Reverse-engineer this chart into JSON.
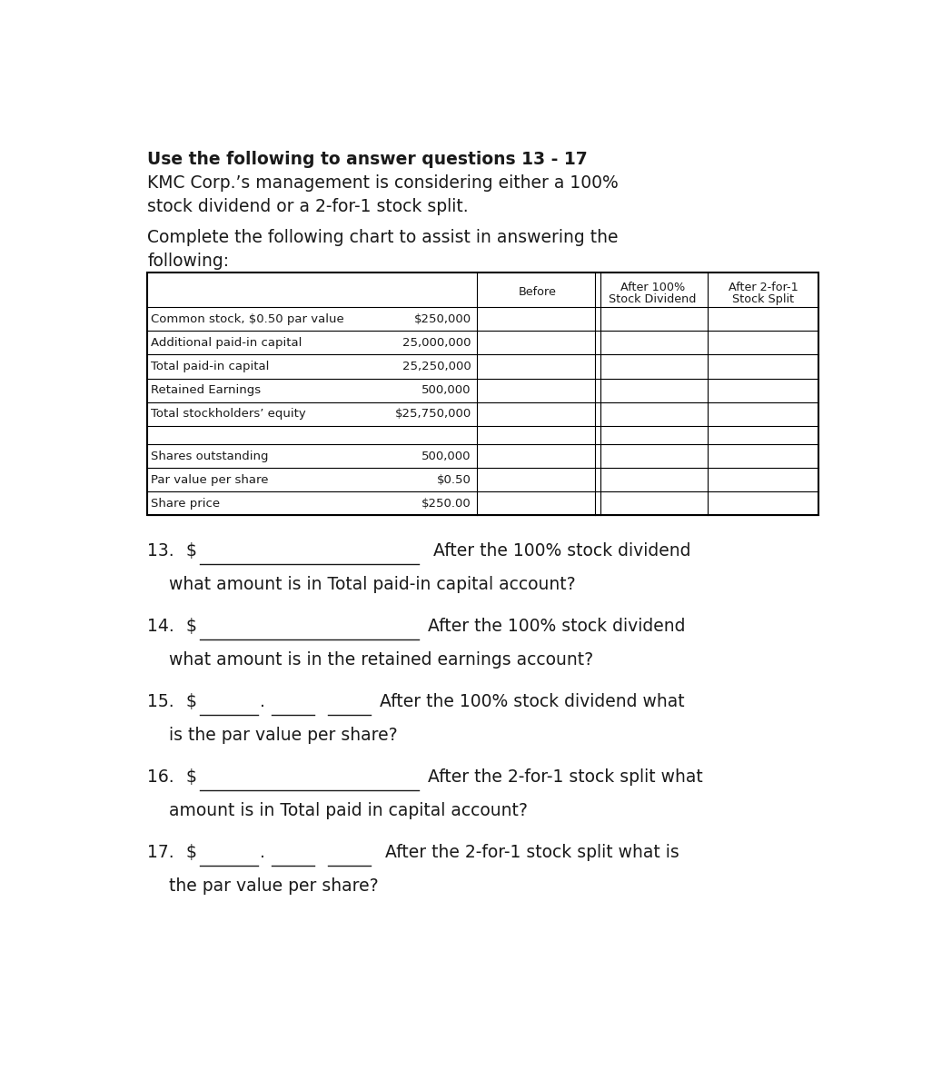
{
  "title_bold": "Use the following to answer questions 13 - 17",
  "para1_line1": "KMC Corp.’s management is considering either a 100%",
  "para1_line2": "stock dividend or a 2-for-1 stock split.",
  "para2_line1": "Complete the following chart to assist in answering the",
  "para2_line2": "following:",
  "col_header1": "Before",
  "col_header2_line1": "After 100%",
  "col_header2_line2": "Stock Dividend",
  "col_header3_line1": "After 2-for-1",
  "col_header3_line2": "Stock Split",
  "table_rows": [
    [
      "Common stock, $0.50 par value",
      "$250,000"
    ],
    [
      "Additional paid-in capital",
      "25,000,000"
    ],
    [
      "Total paid-in capital",
      "25,250,000"
    ],
    [
      "Retained Earnings",
      "500,000"
    ],
    [
      "Total stockholders’ equity",
      "$25,750,000"
    ],
    [
      "",
      ""
    ],
    [
      "Shares outstanding",
      "500,000"
    ],
    [
      "Par value per share",
      "$0.50"
    ],
    [
      "Share price",
      "$250.00"
    ]
  ],
  "q13_num": "13.",
  "q13_line1_a": "$",
  "q13_line1_b": " After the 100% stock dividend",
  "q13_line2": "    what amount is in Total paid-in capital account?",
  "q14_num": "14.",
  "q14_line1_a": "$",
  "q14_line1_b": "After the 100% stock dividend",
  "q14_line2": "    what amount is in the retained earnings account?",
  "q15_num": "15.",
  "q15_line1_a": "$",
  "q15_line1_b": "After the 100% stock dividend what",
  "q15_line2": "    is the par value per share?",
  "q16_num": "16.",
  "q16_line1_a": "$",
  "q16_line1_b": "After the 2-for-1 stock split what",
  "q16_line2": "    amount is in Total paid in capital account?",
  "q17_num": "17.",
  "q17_line1_a": "$",
  "q17_line1_b": " After the 2-for-1 stock split what is",
  "q17_line2": "    the par value per share?",
  "bg_color": "#ffffff",
  "text_color": "#1a1a1a"
}
